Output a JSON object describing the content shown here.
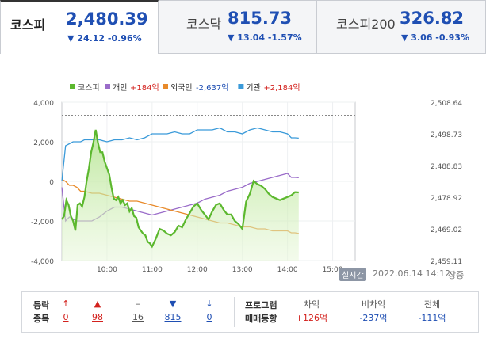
{
  "tabs": [
    {
      "name": "코스피",
      "value": "2,480.39",
      "change": "▼ 24.12 -0.96%"
    },
    {
      "name": "코스닥",
      "value": "815.73",
      "change": "▼ 13.04 -1.57%"
    },
    {
      "name": "코스피200",
      "value": "326.82",
      "change": "▼ 3.06 -0.93%"
    }
  ],
  "colors": {
    "down": "#1f4fb3",
    "up": "#d3211d",
    "kospi": "#5cb82e",
    "individual": "#9a6cc9",
    "foreign": "#e88a2a",
    "institution": "#3a9ad9"
  },
  "chart_data": {
    "type": "line",
    "legend": [
      {
        "name": "코스피",
        "value": ""
      },
      {
        "name": "개인",
        "value": "+184억"
      },
      {
        "name": "외국인",
        "value": "-2,637억"
      },
      {
        "name": "기관",
        "value": "+2,184억"
      }
    ],
    "left_axis": {
      "ticks": [
        "4,000",
        "2,000",
        "0",
        "-2,000",
        "-4,000"
      ],
      "range": [
        -4000,
        4000
      ]
    },
    "right_axis": {
      "ticks": [
        "2,508.64",
        "2,498.73",
        "2,488.83",
        "2,478.92",
        "2,469.02",
        "2,459.11"
      ],
      "range": [
        2459.11,
        2508.64
      ]
    },
    "x_axis": {
      "ticks": [
        "10:00",
        "11:00",
        "12:00",
        "13:00",
        "14:00",
        "15:00"
      ],
      "range": [
        "09:00",
        "15:30"
      ]
    },
    "reference_right": 2504.51,
    "series": [
      {
        "name": "코스피",
        "axis": "right",
        "fill": true,
        "x": [
          "09:00",
          "09:03",
          "09:06",
          "09:09",
          "09:12",
          "09:15",
          "09:18",
          "09:21",
          "09:24",
          "09:27",
          "09:30",
          "09:33",
          "09:36",
          "09:39",
          "09:42",
          "09:45",
          "09:48",
          "09:51",
          "09:54",
          "09:57",
          "10:00",
          "10:03",
          "10:06",
          "10:09",
          "10:12",
          "10:15",
          "10:18",
          "10:21",
          "10:24",
          "10:27",
          "10:30",
          "10:33",
          "10:36",
          "10:39",
          "10:42",
          "10:45",
          "10:48",
          "10:51",
          "10:54",
          "10:57",
          "11:00",
          "11:05",
          "11:10",
          "11:15",
          "11:20",
          "11:25",
          "11:30",
          "11:35",
          "11:40",
          "11:45",
          "11:50",
          "11:55",
          "12:00",
          "12:05",
          "12:10",
          "12:15",
          "12:20",
          "12:25",
          "12:30",
          "12:35",
          "12:40",
          "12:45",
          "12:50",
          "12:55",
          "13:00",
          "13:05",
          "13:10",
          "13:15",
          "13:20",
          "13:25",
          "13:30",
          "13:35",
          "13:40",
          "13:45",
          "13:50",
          "13:55",
          "14:00",
          "14:05",
          "14:10",
          "14:15"
        ],
        "values": [
          2472.0,
          2473.0,
          2478.0,
          2476.5,
          2473.0,
          2471.5,
          2468.5,
          2476.5,
          2477.0,
          2476.0,
          2479.0,
          2484.0,
          2488.0,
          2493.0,
          2496.0,
          2500.0,
          2496.0,
          2493.0,
          2493.0,
          2490.0,
          2488.0,
          2486.0,
          2482.0,
          2478.5,
          2478.0,
          2479.0,
          2477.0,
          2478.0,
          2476.5,
          2477.0,
          2474.5,
          2475.5,
          2473.0,
          2472.5,
          2469.5,
          2468.5,
          2467.5,
          2467.0,
          2465.0,
          2464.5,
          2463.5,
          2466.0,
          2469.0,
          2468.5,
          2467.5,
          2467.0,
          2468.0,
          2470.0,
          2469.5,
          2472.0,
          2474.0,
          2476.0,
          2477.0,
          2475.0,
          2473.5,
          2472.0,
          2474.5,
          2476.5,
          2477.0,
          2475.0,
          2473.5,
          2473.5,
          2471.5,
          2470.5,
          2469.0,
          2477.5,
          2480.0,
          2484.0,
          2483.0,
          2482.5,
          2481.5,
          2480.0,
          2479.0,
          2478.5,
          2478.0,
          2478.5,
          2479.0,
          2479.5,
          2480.5,
          2480.4
        ]
      },
      {
        "name": "개인",
        "axis": "left",
        "x": [
          "09:00",
          "09:05",
          "09:10",
          "09:15",
          "09:20",
          "09:25",
          "09:30",
          "09:40",
          "09:50",
          "10:00",
          "10:10",
          "10:20",
          "10:30",
          "10:40",
          "10:50",
          "11:00",
          "11:10",
          "11:20",
          "11:30",
          "11:40",
          "11:50",
          "12:00",
          "12:10",
          "12:20",
          "12:30",
          "12:40",
          "12:50",
          "13:00",
          "13:10",
          "13:20",
          "13:30",
          "13:40",
          "13:50",
          "14:00",
          "14:05",
          "14:10",
          "14:15"
        ],
        "values": [
          -300,
          -2000,
          -1800,
          -1900,
          -2000,
          -2000,
          -2000,
          -2000,
          -1800,
          -1500,
          -1300,
          -1300,
          -1400,
          -1500,
          -1600,
          -1700,
          -1600,
          -1500,
          -1400,
          -1300,
          -1200,
          -1100,
          -900,
          -800,
          -700,
          -500,
          -400,
          -300,
          -100,
          0,
          100,
          200,
          300,
          400,
          200,
          200,
          184
        ]
      },
      {
        "name": "외국인",
        "axis": "left",
        "x": [
          "09:00",
          "09:05",
          "09:10",
          "09:15",
          "09:20",
          "09:25",
          "09:30",
          "09:40",
          "09:50",
          "10:00",
          "10:10",
          "10:20",
          "10:30",
          "10:40",
          "10:50",
          "11:00",
          "11:10",
          "11:20",
          "11:30",
          "11:40",
          "11:50",
          "12:00",
          "12:10",
          "12:20",
          "12:30",
          "12:40",
          "12:50",
          "13:00",
          "13:10",
          "13:20",
          "13:30",
          "13:40",
          "13:50",
          "14:00",
          "14:05",
          "14:10",
          "14:15"
        ],
        "values": [
          100,
          0,
          -200,
          -200,
          -300,
          -500,
          -500,
          -600,
          -600,
          -700,
          -800,
          -900,
          -1000,
          -1000,
          -1100,
          -1200,
          -1300,
          -1400,
          -1500,
          -1600,
          -1700,
          -1800,
          -1900,
          -2000,
          -2100,
          -2100,
          -2200,
          -2300,
          -2300,
          -2400,
          -2400,
          -2500,
          -2500,
          -2500,
          -2600,
          -2600,
          -2637
        ]
      },
      {
        "name": "기관",
        "axis": "left",
        "x": [
          "09:00",
          "09:05",
          "09:10",
          "09:15",
          "09:20",
          "09:25",
          "09:30",
          "09:40",
          "09:50",
          "10:00",
          "10:10",
          "10:20",
          "10:30",
          "10:40",
          "10:50",
          "11:00",
          "11:10",
          "11:20",
          "11:30",
          "11:40",
          "11:50",
          "12:00",
          "12:10",
          "12:20",
          "12:30",
          "12:40",
          "12:50",
          "13:00",
          "13:10",
          "13:20",
          "13:30",
          "13:40",
          "13:50",
          "14:00",
          "14:05",
          "14:10",
          "14:15"
        ],
        "values": [
          0,
          1800,
          1900,
          2000,
          2000,
          2000,
          2100,
          2100,
          2100,
          2000,
          2100,
          2100,
          2200,
          2100,
          2200,
          2400,
          2400,
          2400,
          2500,
          2400,
          2400,
          2600,
          2600,
          2600,
          2700,
          2500,
          2500,
          2400,
          2600,
          2700,
          2600,
          2500,
          2500,
          2400,
          2200,
          2200,
          2184
        ]
      }
    ]
  },
  "realtime": {
    "badge": "실시간",
    "timestamp": "2022.06.14 14:12",
    "status": "장중"
  },
  "breadth": {
    "label_line1": "등락",
    "label_line2": "종목",
    "items": [
      {
        "icon": "↑",
        "count": "0",
        "kind": "up"
      },
      {
        "icon": "▲",
        "count": "98",
        "kind": "up"
      },
      {
        "icon": "–",
        "count": "16",
        "kind": "flat"
      },
      {
        "icon": "▼",
        "count": "815",
        "kind": "down"
      },
      {
        "icon": "↓",
        "count": "0",
        "kind": "down"
      }
    ]
  },
  "program": {
    "label_line1": "프로그램",
    "label_line2": "매매동향",
    "columns": [
      {
        "header": "차익",
        "value": "+126억",
        "kind": "up"
      },
      {
        "header": "비차익",
        "value": "-237억",
        "kind": "down"
      },
      {
        "header": "전체",
        "value": "-111억",
        "kind": "down"
      }
    ]
  }
}
